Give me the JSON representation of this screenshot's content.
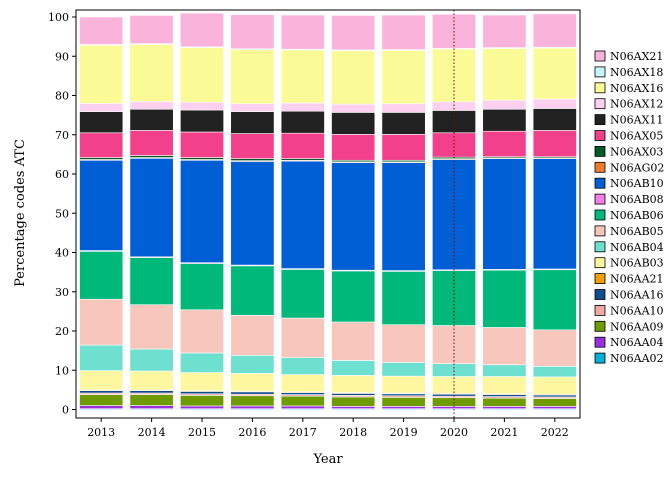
{
  "chart_data": {
    "type": "bar",
    "stacked": true,
    "xlabel": "Year",
    "ylabel": "Percentage codes ATC",
    "ylim": [
      0,
      100
    ],
    "yticks": [
      0,
      10,
      20,
      30,
      40,
      50,
      60,
      70,
      80,
      90,
      100
    ],
    "grid": false,
    "legend_position": "right",
    "highlight_line": {
      "category": "2020",
      "style": "dotted",
      "color": "#8B0000"
    },
    "categories": [
      "2013",
      "2014",
      "2015",
      "2016",
      "2017",
      "2018",
      "2019",
      "2020",
      "2021",
      "2022"
    ],
    "series": [
      {
        "name": "N06AA02",
        "color": "#00B0D8",
        "values": [
          0.2,
          0.2,
          0.2,
          0.2,
          0.2,
          0.2,
          0.2,
          0.2,
          0.2,
          0.2
        ]
      },
      {
        "name": "N06AA04",
        "color": "#9B2FE0",
        "values": [
          0.8,
          0.8,
          0.7,
          0.7,
          0.7,
          0.6,
          0.6,
          0.6,
          0.6,
          0.6
        ]
      },
      {
        "name": "N06AA09",
        "color": "#6E9C00",
        "values": [
          2.8,
          2.8,
          2.7,
          2.6,
          2.5,
          2.4,
          2.3,
          2.2,
          2.1,
          2.0
        ]
      },
      {
        "name": "N06AA10",
        "color": "#F4A7A7",
        "values": [
          0.4,
          0.4,
          0.4,
          0.4,
          0.4,
          0.4,
          0.4,
          0.4,
          0.4,
          0.4
        ]
      },
      {
        "name": "N06AA16",
        "color": "#0F4C8C",
        "values": [
          0.6,
          0.6,
          0.6,
          0.6,
          0.5,
          0.5,
          0.5,
          0.5,
          0.5,
          0.5
        ]
      },
      {
        "name": "N06AA21",
        "color": "#F0A000",
        "values": [
          0.2,
          0.2,
          0.2,
          0.2,
          0.2,
          0.2,
          0.2,
          0.2,
          0.2,
          0.2
        ]
      },
      {
        "name": "N06AB03",
        "color": "#FFF6A0",
        "values": [
          4.9,
          4.8,
          4.6,
          4.5,
          4.4,
          4.4,
          4.3,
          4.3,
          4.4,
          4.4
        ]
      },
      {
        "name": "N06AB04",
        "color": "#6EE0D0",
        "values": [
          6.5,
          5.6,
          5.0,
          4.6,
          4.3,
          3.8,
          3.5,
          3.3,
          3.0,
          2.7
        ]
      },
      {
        "name": "N06AB05",
        "color": "#F7C6BC",
        "values": [
          11.7,
          11.3,
          11.0,
          10.2,
          10.1,
          9.8,
          9.6,
          9.7,
          9.5,
          9.3
        ]
      },
      {
        "name": "N06AB06",
        "color": "#00B87A",
        "values": [
          12.2,
          12.0,
          11.8,
          12.6,
          12.4,
          13.0,
          13.6,
          14.0,
          14.6,
          15.3
        ]
      },
      {
        "name": "N06AB08",
        "color": "#F37EE8",
        "values": [
          0.2,
          0.2,
          0.2,
          0.2,
          0.2,
          0.2,
          0.2,
          0.2,
          0.2,
          0.2
        ]
      },
      {
        "name": "N06AB10",
        "color": "#005FD4",
        "values": [
          23.0,
          25.1,
          26.1,
          26.4,
          27.4,
          27.4,
          27.5,
          28.1,
          28.2,
          28.1
        ]
      },
      {
        "name": "N06AG02",
        "color": "#F07A30",
        "values": [
          0.2,
          0.2,
          0.2,
          0.2,
          0.2,
          0.2,
          0.2,
          0.2,
          0.2,
          0.2
        ]
      },
      {
        "name": "N06AX03",
        "color": "#005A28",
        "values": [
          0.5,
          0.5,
          0.5,
          0.5,
          0.4,
          0.4,
          0.4,
          0.4,
          0.3,
          0.3
        ]
      },
      {
        "name": "N06AX05",
        "color": "#F2408A",
        "values": [
          6.3,
          6.4,
          6.5,
          6.4,
          6.5,
          6.6,
          6.6,
          6.2,
          6.5,
          6.7
        ]
      },
      {
        "name": "N06AX11",
        "color": "#222222",
        "values": [
          5.4,
          5.4,
          5.6,
          5.6,
          5.6,
          5.6,
          5.6,
          5.7,
          5.6,
          5.6
        ]
      },
      {
        "name": "N06AX12",
        "color": "#FDD0F0",
        "values": [
          2.1,
          2.0,
          2.0,
          2.0,
          2.1,
          2.1,
          2.2,
          2.2,
          2.3,
          2.4
        ]
      },
      {
        "name": "N06AX16",
        "color": "#FAFA96",
        "values": [
          14.8,
          14.5,
          13.9,
          13.8,
          13.5,
          13.6,
          13.6,
          13.4,
          13.2,
          13.0
        ]
      },
      {
        "name": "N06AX18",
        "color": "#C8F5F5",
        "values": [
          0.2,
          0.2,
          0.2,
          0.2,
          0.2,
          0.2,
          0.2,
          0.2,
          0.2,
          0.2
        ]
      },
      {
        "name": "N06AX21",
        "color": "#FAB4DC",
        "values": [
          7.0,
          7.2,
          8.6,
          8.7,
          8.7,
          8.8,
          8.8,
          8.7,
          8.3,
          8.5
        ]
      }
    ]
  }
}
